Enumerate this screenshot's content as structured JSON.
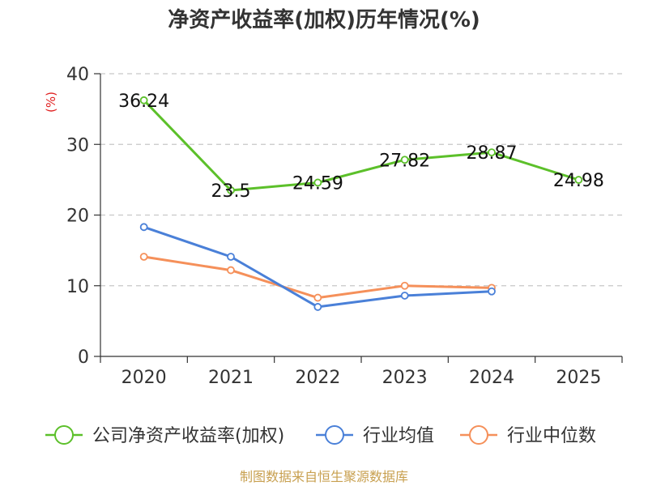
{
  "chart_data": {
    "type": "line",
    "title": "净资产收益率(加权)历年情况(%)",
    "ylabel": "(%)",
    "xlabel": "",
    "categories": [
      "2020",
      "2021",
      "2022",
      "2023",
      "2024",
      "2025"
    ],
    "ylim": [
      0,
      40
    ],
    "yticks": [
      0,
      10,
      20,
      30,
      40
    ],
    "grid": true,
    "legend_position": "bottom",
    "series": [
      {
        "name": "公司净资产收益率(加权)",
        "color": "#5cc02a",
        "values": [
          36.24,
          23.5,
          24.59,
          27.82,
          28.87,
          24.98
        ],
        "labels": [
          "36.24",
          "23.5",
          "24.59",
          "27.82",
          "28.87",
          "24.98"
        ]
      },
      {
        "name": "行业均值",
        "color": "#4a80d8",
        "values": [
          18.3,
          14.1,
          7.0,
          8.6,
          9.2,
          null
        ],
        "labels": null
      },
      {
        "name": "行业中位数",
        "color": "#f5905a",
        "values": [
          14.1,
          12.2,
          8.3,
          10.0,
          9.7,
          null
        ],
        "labels": null
      }
    ]
  },
  "source": "制图数据来自恒生聚源数据库"
}
